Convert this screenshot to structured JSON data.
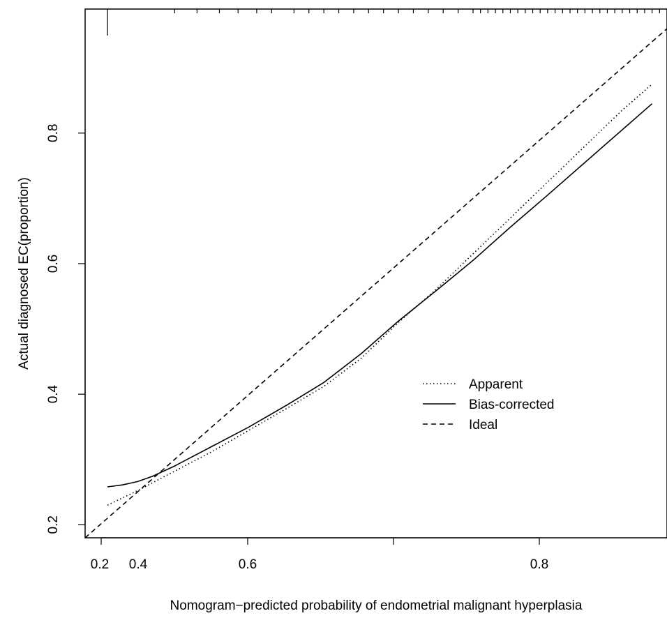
{
  "chart_data": {
    "type": "line",
    "title": "",
    "xlabel": "Nomogram−predicted probability of endometrial malignant hyperplasia",
    "ylabel": "Actual diagnosed EC(proportion)",
    "xlim": [
      0.18,
      0.96
    ],
    "ylim": [
      0.18,
      0.99
    ],
    "x_ticks": [
      {
        "value": 0.2,
        "label": "0.2"
      },
      {
        "value": 0.4,
        "label": "0.4"
      },
      {
        "value": 0.6,
        "label": "0.6"
      },
      {
        "value": 0.8,
        "label": "0.8"
      }
    ],
    "x_ticks_unlabeled": [
      0.4,
      0.6,
      0.8
    ],
    "y_ticks": [
      {
        "value": 0.2,
        "label": "0.2"
      },
      {
        "value": 0.4,
        "label": "0.4"
      },
      {
        "value": 0.6,
        "label": "0.6"
      },
      {
        "value": 0.8,
        "label": "0.8"
      }
    ],
    "legend_position": "center-right",
    "grid": false,
    "series": [
      {
        "name": "Apparent",
        "line_style": "dotted",
        "x": [
          0.21,
          0.25,
          0.3,
          0.35,
          0.4,
          0.45,
          0.5,
          0.55,
          0.6,
          0.65,
          0.7,
          0.75,
          0.8,
          0.85,
          0.9,
          0.94
        ],
        "y": [
          0.23,
          0.252,
          0.282,
          0.312,
          0.345,
          0.378,
          0.412,
          0.455,
          0.51,
          0.56,
          0.615,
          0.67,
          0.725,
          0.78,
          0.835,
          0.875
        ]
      },
      {
        "name": "Bias-corrected",
        "line_style": "solid",
        "x": [
          0.21,
          0.23,
          0.25,
          0.27,
          0.3,
          0.35,
          0.4,
          0.45,
          0.5,
          0.55,
          0.6,
          0.65,
          0.7,
          0.75,
          0.8,
          0.85,
          0.9,
          0.94
        ],
        "y": [
          0.258,
          0.261,
          0.266,
          0.274,
          0.29,
          0.32,
          0.35,
          0.383,
          0.418,
          0.462,
          0.512,
          0.558,
          0.605,
          0.656,
          0.705,
          0.755,
          0.805,
          0.845
        ]
      },
      {
        "name": "Ideal",
        "line_style": "dashed",
        "x": [
          0.18,
          0.96
        ],
        "y": [
          0.18,
          0.96
        ]
      }
    ],
    "rug": {
      "side": "top",
      "x": [
        0.21,
        0.3,
        0.33,
        0.36,
        0.385,
        0.41,
        0.43,
        0.46,
        0.48,
        0.5,
        0.52,
        0.54,
        0.56,
        0.58,
        0.6,
        0.62,
        0.64,
        0.66,
        0.68,
        0.7,
        0.71,
        0.72,
        0.73,
        0.74,
        0.75,
        0.76,
        0.77,
        0.78,
        0.79,
        0.8,
        0.81,
        0.82,
        0.83,
        0.84,
        0.85,
        0.86,
        0.87,
        0.88,
        0.89,
        0.9,
        0.91,
        0.92,
        0.93,
        0.94,
        0.95
      ]
    }
  }
}
